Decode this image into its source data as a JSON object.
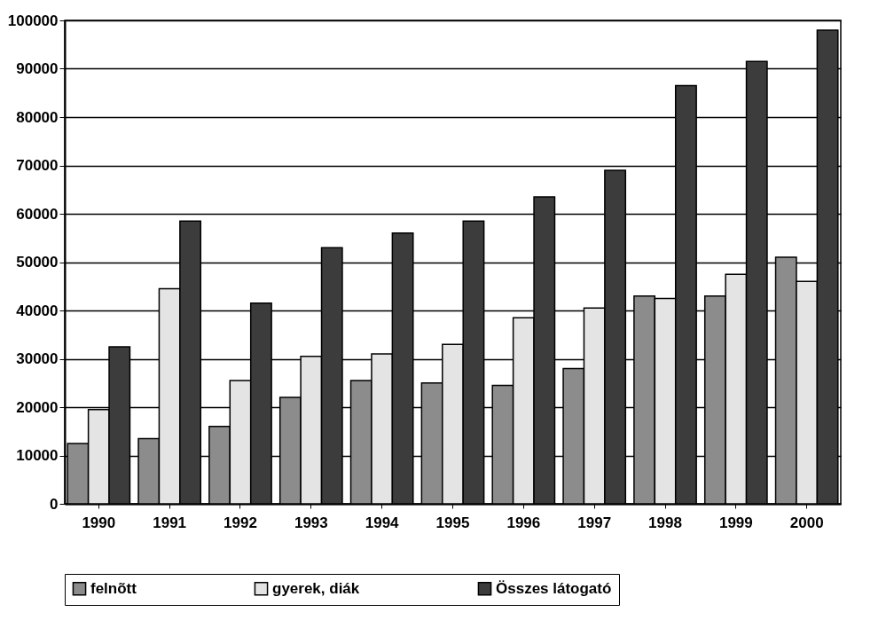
{
  "chart_data": {
    "type": "bar",
    "categories": [
      "1990",
      "1991",
      "1992",
      "1993",
      "1994",
      "1995",
      "1996",
      "1997",
      "1998",
      "1999",
      "2000"
    ],
    "series": [
      {
        "name": "felnõtt",
        "color": "#8c8c8c",
        "values": [
          12500,
          13500,
          16000,
          22000,
          25500,
          25000,
          24500,
          28000,
          43000,
          43000,
          51000
        ]
      },
      {
        "name": "gyerek, diák",
        "color": "#e4e4e4",
        "values": [
          19500,
          44500,
          25500,
          30500,
          31000,
          33000,
          38500,
          40500,
          42500,
          47500,
          46000
        ]
      },
      {
        "name": "Összes látogató",
        "color": "#3c3c3c",
        "values": [
          32500,
          58500,
          41500,
          53000,
          56000,
          58500,
          63500,
          69000,
          86500,
          91500,
          98000
        ]
      }
    ],
    "ylim": [
      0,
      100000
    ],
    "yticks": [
      0,
      10000,
      20000,
      30000,
      40000,
      50000,
      60000,
      70000,
      80000,
      90000,
      100000
    ],
    "grid": "y",
    "legend": "bottom"
  }
}
